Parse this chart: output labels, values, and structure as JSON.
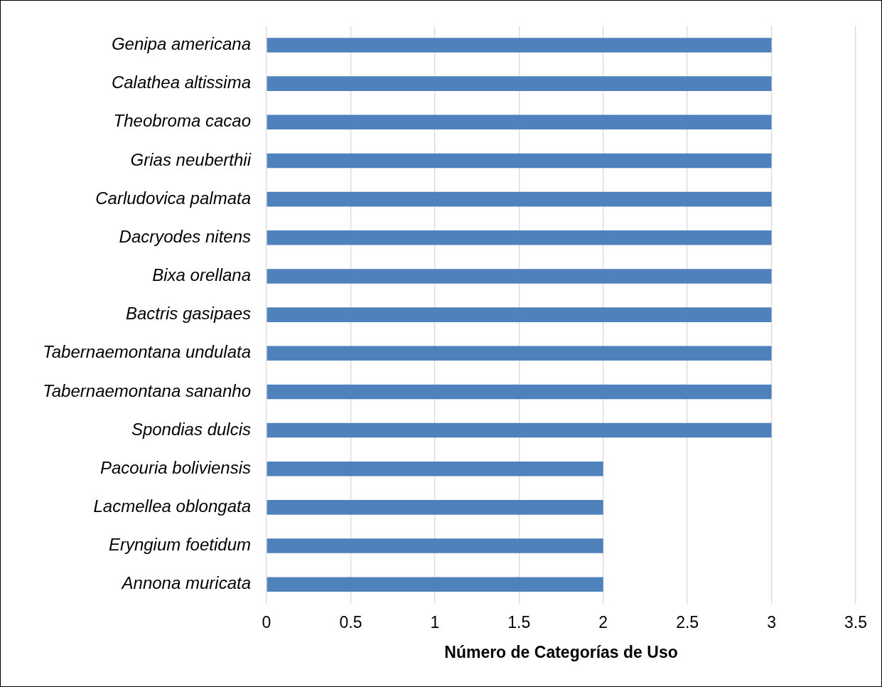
{
  "chart_data": {
    "type": "bar",
    "orientation": "horizontal",
    "xlabel": "Número de Categorías de Uso",
    "categories": [
      "Genipa americana",
      "Calathea altissima",
      "Theobroma cacao",
      "Grias neuberthii",
      "Carludovica palmata",
      "Dacryodes nitens",
      "Bixa orellana",
      "Bactris gasipaes",
      "Tabernaemontana undulata",
      "Tabernaemontana sananho",
      "Spondias dulcis",
      "Pacouria boliviensis",
      "Lacmellea oblongata",
      "Eryngium foetidum",
      "Annona muricata"
    ],
    "values": [
      3,
      3,
      3,
      3,
      3,
      3,
      3,
      3,
      3,
      3,
      3,
      2,
      2,
      2,
      2
    ],
    "color": "#4f81bd",
    "xlim": [
      0,
      3.5
    ],
    "xticks": [
      0,
      0.5,
      1,
      1.5,
      2,
      2.5,
      3,
      3.5
    ],
    "grid": "x",
    "legend": false
  }
}
